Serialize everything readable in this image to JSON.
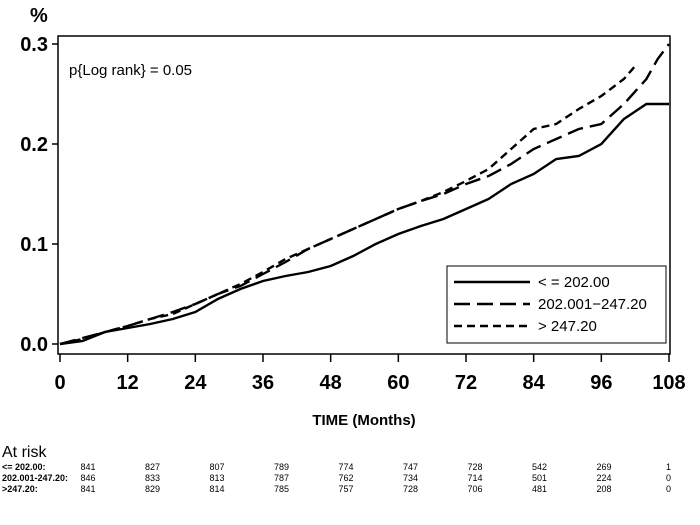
{
  "chart_data": {
    "type": "line",
    "title": "",
    "ylabel": "%",
    "xlabel": "TIME  (Months)",
    "xlim": [
      0,
      108
    ],
    "ylim": [
      0,
      0.3
    ],
    "xticks": [
      0,
      12,
      24,
      36,
      48,
      60,
      72,
      84,
      96,
      108
    ],
    "yticks": [
      "0.0",
      "0.1",
      "0.2",
      "0.3"
    ],
    "annotation": "p{Log rank}  =  0.05",
    "legend_position": "bottom-right",
    "series": [
      {
        "name": "< =  202.00",
        "dash": "solid",
        "points": [
          [
            0,
            0
          ],
          [
            4,
            0.003
          ],
          [
            8,
            0.012
          ],
          [
            12,
            0.016
          ],
          [
            16,
            0.02
          ],
          [
            20,
            0.025
          ],
          [
            24,
            0.032
          ],
          [
            28,
            0.045
          ],
          [
            32,
            0.055
          ],
          [
            36,
            0.063
          ],
          [
            40,
            0.068
          ],
          [
            44,
            0.072
          ],
          [
            48,
            0.078
          ],
          [
            52,
            0.088
          ],
          [
            56,
            0.1
          ],
          [
            60,
            0.11
          ],
          [
            64,
            0.118
          ],
          [
            68,
            0.125
          ],
          [
            72,
            0.135
          ],
          [
            76,
            0.145
          ],
          [
            80,
            0.16
          ],
          [
            84,
            0.17
          ],
          [
            88,
            0.185
          ],
          [
            92,
            0.188
          ],
          [
            96,
            0.2
          ],
          [
            100,
            0.225
          ],
          [
            104,
            0.24
          ],
          [
            108,
            0.24
          ]
        ]
      },
      {
        "name": "202.001−247.20",
        "dash": "long",
        "points": [
          [
            0,
            0
          ],
          [
            4,
            0.006
          ],
          [
            8,
            0.012
          ],
          [
            12,
            0.018
          ],
          [
            16,
            0.025
          ],
          [
            20,
            0.032
          ],
          [
            24,
            0.04
          ],
          [
            28,
            0.05
          ],
          [
            32,
            0.058
          ],
          [
            36,
            0.07
          ],
          [
            40,
            0.082
          ],
          [
            44,
            0.095
          ],
          [
            48,
            0.105
          ],
          [
            52,
            0.115
          ],
          [
            56,
            0.125
          ],
          [
            60,
            0.135
          ],
          [
            64,
            0.143
          ],
          [
            68,
            0.15
          ],
          [
            72,
            0.16
          ],
          [
            76,
            0.168
          ],
          [
            80,
            0.18
          ],
          [
            84,
            0.195
          ],
          [
            88,
            0.205
          ],
          [
            92,
            0.215
          ],
          [
            96,
            0.22
          ],
          [
            100,
            0.24
          ],
          [
            104,
            0.265
          ],
          [
            106,
            0.285
          ],
          [
            108,
            0.3
          ]
        ]
      },
      {
        "name": "> 247.20",
        "dash": "short",
        "points": [
          [
            0,
            0
          ],
          [
            4,
            0.005
          ],
          [
            8,
            0.012
          ],
          [
            12,
            0.018
          ],
          [
            16,
            0.025
          ],
          [
            20,
            0.03
          ],
          [
            24,
            0.04
          ],
          [
            28,
            0.05
          ],
          [
            32,
            0.06
          ],
          [
            36,
            0.072
          ],
          [
            40,
            0.085
          ],
          [
            44,
            0.095
          ],
          [
            48,
            0.105
          ],
          [
            52,
            0.115
          ],
          [
            56,
            0.125
          ],
          [
            60,
            0.135
          ],
          [
            64,
            0.143
          ],
          [
            68,
            0.152
          ],
          [
            72,
            0.163
          ],
          [
            76,
            0.175
          ],
          [
            80,
            0.195
          ],
          [
            84,
            0.215
          ],
          [
            88,
            0.22
          ],
          [
            92,
            0.235
          ],
          [
            96,
            0.248
          ],
          [
            100,
            0.265
          ],
          [
            102,
            0.278
          ]
        ]
      }
    ]
  },
  "at_risk": {
    "title": "At risk",
    "rows": [
      {
        "label": "<= 202.00:",
        "values": [
          "841",
          "827",
          "807",
          "789",
          "774",
          "747",
          "728",
          "542",
          "269",
          "1"
        ]
      },
      {
        "label": "202.001-247.20:",
        "values": [
          "846",
          "833",
          "813",
          "787",
          "762",
          "734",
          "714",
          "501",
          "224",
          "0"
        ]
      },
      {
        "label": ">247.20:",
        "values": [
          "841",
          "829",
          "814",
          "785",
          "757",
          "728",
          "706",
          "481",
          "208",
          "0"
        ]
      }
    ]
  }
}
